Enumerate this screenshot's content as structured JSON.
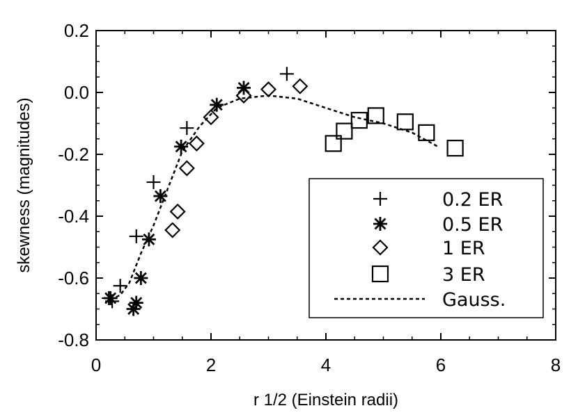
{
  "chart_data": {
    "type": "scatter",
    "xlabel": "r 1/2 (Einstein radii)",
    "ylabel": "skewness (magnitudes)",
    "xlim": [
      0,
      8
    ],
    "ylim": [
      -0.8,
      0.2
    ],
    "x_ticks": [
      "0",
      "2",
      "4",
      "6",
      "8"
    ],
    "y_ticks": [
      "-0.8",
      "-0.6",
      "-0.4",
      "-0.2",
      "0.0",
      "0.2"
    ],
    "legend_position": "lower-right",
    "series": [
      {
        "name": "0.2 ER",
        "marker": "plus-icon",
        "points": [
          [
            0.22,
            -0.665
          ],
          [
            0.28,
            -0.675
          ],
          [
            0.42,
            -0.625
          ],
          [
            0.7,
            -0.465
          ],
          [
            1.0,
            -0.29
          ],
          [
            1.58,
            -0.115
          ],
          [
            3.32,
            0.06
          ]
        ]
      },
      {
        "name": "0.5 ER",
        "marker": "asterisk-icon",
        "points": [
          [
            0.25,
            -0.665
          ],
          [
            0.65,
            -0.7
          ],
          [
            0.7,
            -0.68
          ],
          [
            0.78,
            -0.6
          ],
          [
            0.92,
            -0.475
          ],
          [
            1.12,
            -0.335
          ],
          [
            1.48,
            -0.175
          ],
          [
            2.1,
            -0.04
          ],
          [
            2.57,
            0.015
          ]
        ]
      },
      {
        "name": "1 ER",
        "marker": "diamond-icon",
        "points": [
          [
            1.33,
            -0.445
          ],
          [
            1.42,
            -0.385
          ],
          [
            1.58,
            -0.245
          ],
          [
            1.75,
            -0.165
          ],
          [
            2.0,
            -0.08
          ],
          [
            2.57,
            -0.01
          ],
          [
            3.0,
            0.01
          ],
          [
            3.55,
            0.02
          ]
        ]
      },
      {
        "name": "3 ER",
        "marker": "square-icon",
        "points": [
          [
            4.13,
            -0.165
          ],
          [
            4.32,
            -0.125
          ],
          [
            4.58,
            -0.09
          ],
          [
            4.87,
            -0.075
          ],
          [
            5.38,
            -0.095
          ],
          [
            5.75,
            -0.13
          ],
          [
            6.25,
            -0.18
          ]
        ]
      }
    ],
    "gauss": {
      "name": "Gauss.",
      "style": "dashed",
      "points": [
        [
          0.25,
          -0.67
        ],
        [
          0.42,
          -0.655
        ],
        [
          0.58,
          -0.615
        ],
        [
          0.78,
          -0.52
        ],
        [
          1.0,
          -0.43
        ],
        [
          1.25,
          -0.31
        ],
        [
          1.5,
          -0.19
        ],
        [
          1.8,
          -0.11
        ],
        [
          2.1,
          -0.05
        ],
        [
          2.5,
          -0.02
        ],
        [
          3.0,
          -0.01
        ],
        [
          3.5,
          -0.02
        ],
        [
          4.0,
          -0.05
        ],
        [
          4.5,
          -0.08
        ],
        [
          5.0,
          -0.1
        ],
        [
          5.5,
          -0.13
        ],
        [
          5.95,
          -0.175
        ]
      ]
    }
  }
}
